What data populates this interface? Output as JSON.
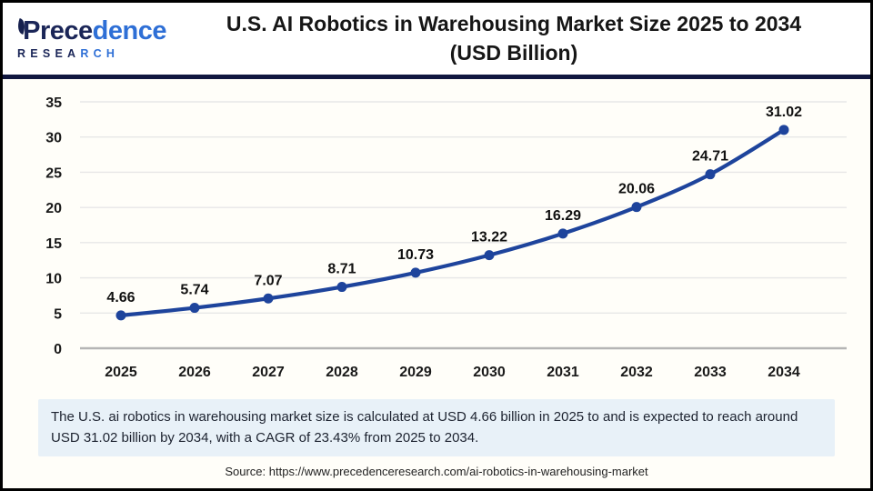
{
  "logo": {
    "name_dark": "Prece",
    "name_light": "dence",
    "sub_dark": "RESEA",
    "sub_light": "RCH"
  },
  "header": {
    "title_line1": "U.S. AI Robotics in Warehousing Market Size 2025 to 2034",
    "title_line2": "(USD Billion)"
  },
  "colors": {
    "line": "#1e449c",
    "brand_navy": "#1b2658",
    "brand_blue": "#2e6fd6",
    "summary_bg": "#e8f1f8",
    "grid": "#e7e7e7",
    "baseline": "#b5b5b5"
  },
  "chart_data": {
    "type": "line",
    "title": "U.S. AI Robotics in Warehousing Market Size 2025 to 2034 (USD Billion)",
    "categories": [
      "2025",
      "2026",
      "2027",
      "2028",
      "2029",
      "2030",
      "2031",
      "2032",
      "2033",
      "2034"
    ],
    "values": [
      4.66,
      5.74,
      7.07,
      8.71,
      10.73,
      13.22,
      16.29,
      20.06,
      24.71,
      31.02
    ],
    "xlabel": "",
    "ylabel": "",
    "ylim": [
      0,
      35
    ],
    "yticks": [
      0,
      5,
      10,
      15,
      20,
      25,
      30,
      35
    ],
    "grid": true,
    "legend": false,
    "line_color": "#1e449c",
    "marker": "circle",
    "data_labels": true
  },
  "summary": {
    "text": "The U.S. ai robotics in warehousing market size is calculated at USD 4.66 billion in 2025 to and is expected to reach around USD 31.02 billion by 2034, with a CAGR of 23.43% from 2025 to 2034."
  },
  "source": {
    "text": "Source: https://www.precedenceresearch.com/ai-robotics-in-warehousing-market"
  }
}
